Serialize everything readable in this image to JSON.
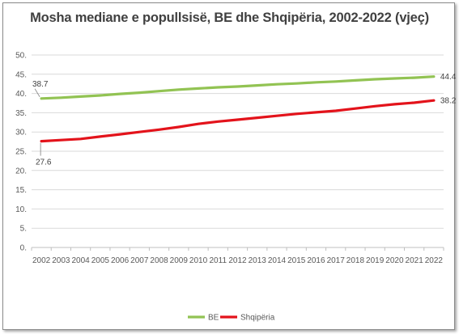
{
  "chart_data": {
    "type": "line",
    "title": "Mosha mediane e popullsisë, BE dhe Shqipëria, 2002-2022 (vjeç)",
    "xlabel": "",
    "ylabel": "",
    "categories": [
      "2002",
      "2003",
      "2004",
      "2005",
      "2006",
      "2007",
      "2008",
      "2009",
      "2010",
      "2011",
      "2012",
      "2013",
      "2014",
      "2015",
      "2016",
      "2017",
      "2018",
      "2019",
      "2020",
      "2021",
      "2022"
    ],
    "ylim": [
      0,
      50
    ],
    "yticks": [
      0,
      5,
      10,
      15,
      20,
      25,
      30,
      35,
      40,
      45,
      50
    ],
    "ytick_labels": [
      "0.",
      "5.",
      "10.",
      "15.",
      "20.",
      "25.",
      "30.",
      "35.",
      "40.",
      "45.",
      "50."
    ],
    "grid": true,
    "legend_position": "bottom",
    "series": [
      {
        "name": "BE",
        "color": "#92c353",
        "values": [
          38.7,
          38.9,
          39.2,
          39.5,
          39.9,
          40.2,
          40.6,
          41.0,
          41.3,
          41.6,
          41.8,
          42.1,
          42.4,
          42.6,
          42.9,
          43.1,
          43.4,
          43.7,
          43.9,
          44.1,
          44.4
        ],
        "labels": [
          {
            "index": 0,
            "text": "38.7"
          },
          {
            "index": 20,
            "text": "44.4"
          }
        ]
      },
      {
        "name": "Shqipëria",
        "color": "#e3131b",
        "values": [
          27.6,
          27.9,
          28.2,
          28.8,
          29.4,
          30.0,
          30.6,
          31.3,
          32.1,
          32.7,
          33.2,
          33.7,
          34.2,
          34.7,
          35.1,
          35.5,
          36.1,
          36.7,
          37.2,
          37.6,
          38.2
        ],
        "labels": [
          {
            "index": 0,
            "text": "27.6"
          },
          {
            "index": 20,
            "text": "38.2"
          }
        ]
      }
    ]
  }
}
